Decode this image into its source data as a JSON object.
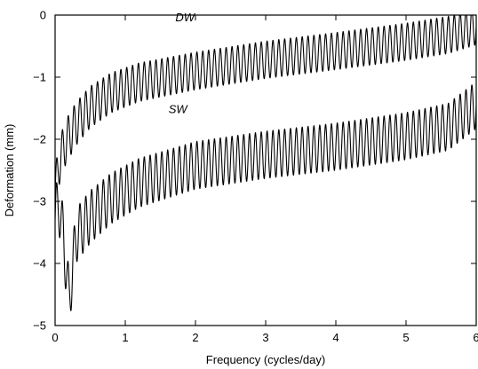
{
  "chart_data": {
    "type": "line",
    "xlabel": "Frequency (cycles/day)",
    "ylabel": "Deformation (mm)",
    "xlim": [
      0,
      6
    ],
    "ylim": [
      -5,
      0
    ],
    "xticks": [
      0,
      1,
      2,
      3,
      4,
      5,
      6
    ],
    "yticks": [
      0,
      -1,
      -2,
      -3,
      -4,
      -5
    ],
    "xtick_labels": [
      "0",
      "1",
      "2",
      "3",
      "4",
      "5",
      "6"
    ],
    "ytick_labels": [
      "0",
      "−1",
      "−2",
      "−3",
      "−4",
      "−5"
    ],
    "grid": false,
    "series": [
      {
        "name": "DW",
        "oscillation_cycles_per_x_unit": 12,
        "oscillation_amplitude": 0.3,
        "trend": {
          "x": [
            0.0,
            0.05,
            0.15,
            0.3,
            0.5,
            0.8,
            1.2,
            2.0,
            3.0,
            4.0,
            5.0,
            5.6,
            6.0
          ],
          "y": [
            -2.9,
            -2.4,
            -2.05,
            -1.75,
            -1.48,
            -1.25,
            -1.08,
            -0.9,
            -0.72,
            -0.58,
            -0.43,
            -0.32,
            -0.18
          ]
        }
      },
      {
        "name": "SW",
        "oscillation_cycles_per_x_unit": 12,
        "oscillation_amplitude": 0.38,
        "trend": {
          "x": [
            0.0,
            0.05,
            0.12,
            0.2,
            0.3,
            0.5,
            0.8,
            1.2,
            2.0,
            3.0,
            4.0,
            5.0,
            5.6,
            6.0
          ],
          "y": [
            -3.3,
            -3.0,
            -3.6,
            -4.6,
            -3.55,
            -3.25,
            -2.95,
            -2.7,
            -2.42,
            -2.25,
            -2.12,
            -1.95,
            -1.8,
            -1.45
          ]
        }
      }
    ]
  }
}
